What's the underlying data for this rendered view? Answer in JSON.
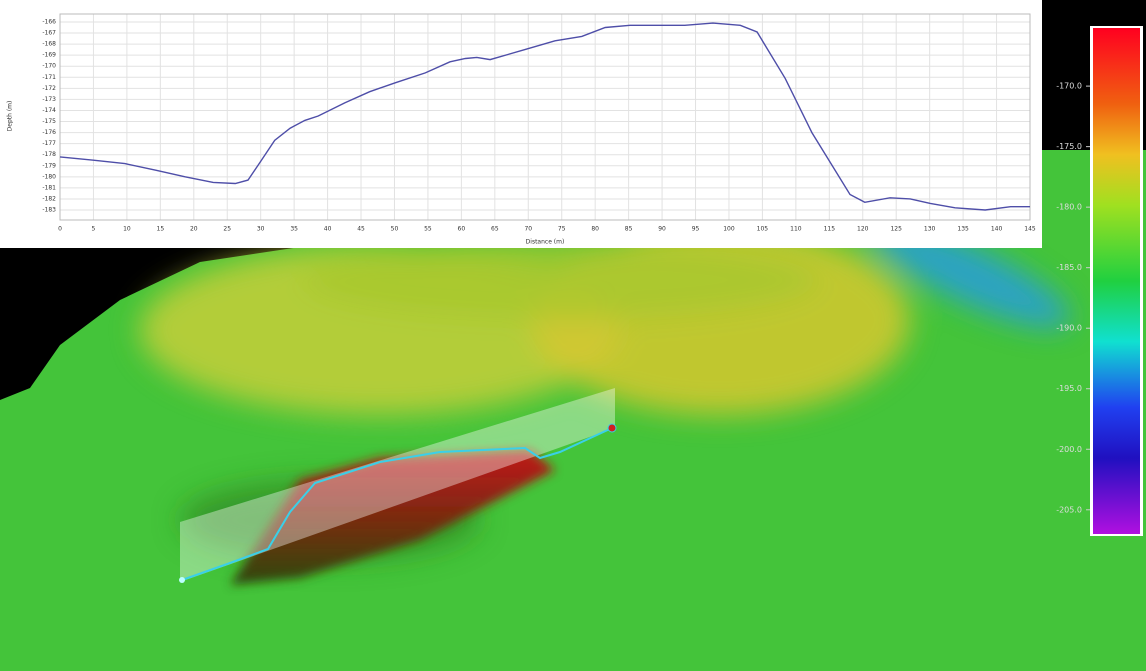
{
  "chart_data": [
    {
      "type": "line",
      "y_label": "Depth (m)",
      "x_label": "Distance (m)",
      "color": "#4e4ea8",
      "grid": true,
      "x": [
        0,
        5,
        9.7,
        14.3,
        18.7,
        22.9,
        26.2,
        28.1,
        29.9,
        32.1,
        34.4,
        36.6,
        38.6,
        42.6,
        46.3,
        50.1,
        54.6,
        58.3,
        60.6,
        62.3,
        64.3,
        69.5,
        74,
        78,
        81.5,
        85.2,
        93.4,
        97.6,
        101.7,
        104.2,
        108.4,
        112.4,
        118.1,
        120.3,
        124.1,
        127.1,
        130.1,
        133.8,
        138.3,
        142.1,
        145
      ],
      "values": [
        -178.2,
        -178.5,
        -178.8,
        -179.4,
        -180.0,
        -180.5,
        -180.6,
        -180.3,
        -178.7,
        -176.7,
        -175.6,
        -174.9,
        -174.5,
        -173.3,
        -172.3,
        -171.5,
        -170.6,
        -169.6,
        -169.3,
        -169.2,
        -169.4,
        -168.5,
        -167.7,
        -167.3,
        -166.5,
        -166.3,
        -166.3,
        -166.1,
        -166.3,
        -166.9,
        -171.1,
        -176.0,
        -181.6,
        -182.3,
        -181.9,
        -182.0,
        -182.4,
        -182.8,
        -183.0,
        -182.7,
        -182.7
      ],
      "xlim": [
        0,
        145
      ],
      "xticks": [
        0,
        5,
        10,
        15,
        20,
        25,
        30,
        35,
        40,
        45,
        50,
        55,
        60,
        65,
        70,
        75,
        80,
        85,
        90,
        95,
        100,
        105,
        110,
        115,
        120,
        125,
        130,
        135,
        140,
        145
      ],
      "ylim": [
        -183,
        -166
      ],
      "yticks": [
        -166,
        -167,
        -168,
        -169,
        -170,
        -171,
        -172,
        -173,
        -174,
        -175,
        -176,
        -177,
        -178,
        -179,
        -180,
        -181,
        -182,
        -183
      ]
    },
    {
      "type": "colorbar",
      "ylim": [
        -207,
        -165.2
      ],
      "yticks": [
        {
          "value": -170,
          "label": "-170.0"
        },
        {
          "value": -175,
          "label": "-175.0"
        },
        {
          "value": -180,
          "label": "-180.0"
        },
        {
          "value": -185,
          "label": "-185.0"
        },
        {
          "value": -190,
          "label": "-190.0"
        },
        {
          "value": -195,
          "label": "-195.0"
        },
        {
          "value": -200,
          "label": "-200.0"
        },
        {
          "value": -205,
          "label": "-205.0"
        }
      ]
    }
  ]
}
